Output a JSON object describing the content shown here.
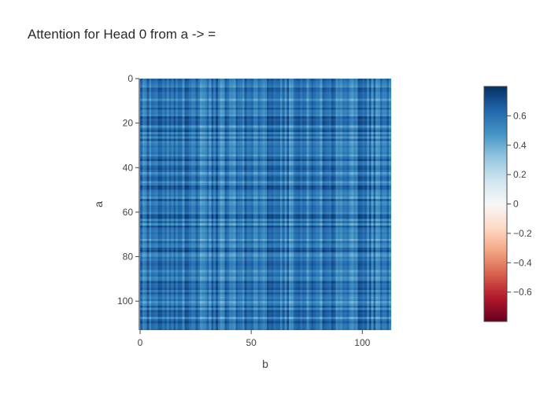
{
  "chart_data": {
    "type": "heatmap",
    "title": "Attention for Head 0 from a -> =",
    "xlabel": "b",
    "ylabel": "a",
    "x_range": [
      0,
      113
    ],
    "y_range": [
      0,
      113
    ],
    "y_reversed": true,
    "x_ticks": [
      0,
      50,
      100
    ],
    "y_ticks": [
      0,
      20,
      40,
      60,
      80,
      100
    ],
    "x_tick_labels": [
      "0",
      "50",
      "100"
    ],
    "y_tick_labels": [
      "0",
      "20",
      "40",
      "60",
      "80",
      "100"
    ],
    "colorscale": "RdBu",
    "colorscale_stops": [
      "#67001f",
      "#b2182b",
      "#d6604d",
      "#f4a582",
      "#fddbc7",
      "#f7f7f7",
      "#d1e5f0",
      "#92c5de",
      "#4393c3",
      "#2166ac",
      "#053061"
    ],
    "zmin": -0.8,
    "zmax": 0.8,
    "colorbar_ticks": [
      0.6,
      0.4,
      0.2,
      0,
      -0.2,
      -0.4,
      -0.6
    ],
    "colorbar_tick_labels": [
      "0.6",
      "0.4",
      "0.2",
      "0",
      "−0.2",
      "−0.4",
      "−0.6"
    ],
    "value_summary": {
      "min": 0.35,
      "max": 0.78,
      "typical": 0.6
    }
  }
}
